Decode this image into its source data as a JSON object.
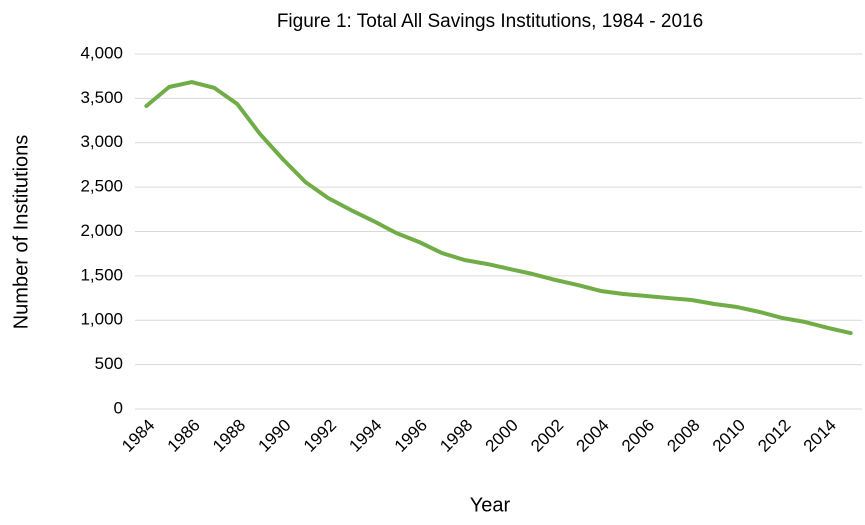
{
  "chart_data": {
    "type": "line",
    "title": "Figure 1: Total All Savings Institutions, 1984 - 2016",
    "x_label": "Year",
    "y_label": "Number of Institutions",
    "categories": [
      "1984",
      null,
      "1986",
      null,
      "1988",
      null,
      "1990",
      null,
      "1992",
      null,
      "1994",
      null,
      "1996",
      null,
      "1998",
      null,
      "2000",
      null,
      "2002",
      null,
      "2004",
      null,
      "2006",
      null,
      "2008",
      null,
      "2010",
      null,
      "2012",
      null,
      "2014",
      null
    ],
    "series": [
      {
        "name": "Total All Savings Institutions",
        "color": "#70ad47",
        "values": [
          3414,
          3628,
          3684,
          3617,
          3437,
          3099,
          2817,
          2558,
          2377,
          2242,
          2118,
          1983,
          1882,
          1758,
          1679,
          1634,
          1577,
          1521,
          1454,
          1397,
          1330,
          1296,
          1273,
          1250,
          1228,
          1183,
          1149,
          1093,
          1025,
          980,
          913,
          856
        ]
      }
    ],
    "ylim": [
      0,
      4000
    ],
    "yticks": [
      0,
      500,
      {
        "value": 1000,
        "label": "1,000"
      },
      {
        "value": 1500,
        "label": "1,500"
      },
      {
        "value": 2000,
        "label": "2,000"
      },
      {
        "value": 2500,
        "label": "2,500"
      },
      {
        "value": 3000,
        "label": "3,000"
      },
      {
        "value": 3500,
        "label": "3,500"
      },
      {
        "value": 4000,
        "label": "4,000"
      }
    ],
    "grid": true
  }
}
